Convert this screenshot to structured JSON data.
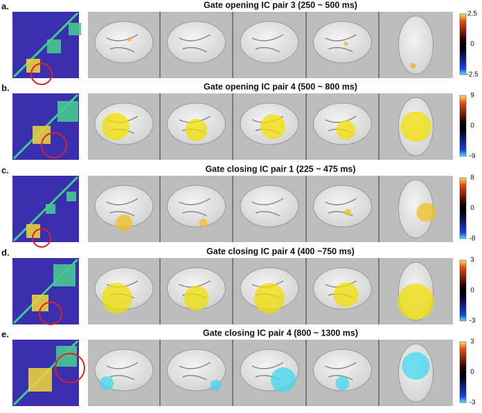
{
  "panels": [
    {
      "label": "a.",
      "title": "Gate opening IC pair 3 (250 ~ 500 ms)",
      "colorbar_ticks": [
        2.5,
        0,
        -2.5
      ]
    },
    {
      "label": "b.",
      "title": "Gate opening IC pair 4 (500 ~ 800 ms)",
      "colorbar_ticks": [
        9,
        0,
        -9
      ]
    },
    {
      "label": "c.",
      "title": "Gate closing IC pair 1 (225 ~ 475 ms)",
      "colorbar_ticks": [
        8,
        0,
        -8
      ]
    },
    {
      "label": "d.",
      "title": "Gate closing IC pair 4 (400 ~750 ms)",
      "colorbar_ticks": [
        3,
        0,
        -3
      ]
    },
    {
      "label": "e.",
      "title": "Gate closing IC pair 4 (800 ~ 1300 ms)",
      "colorbar_ticks": [
        3,
        0,
        -3
      ]
    }
  ]
}
